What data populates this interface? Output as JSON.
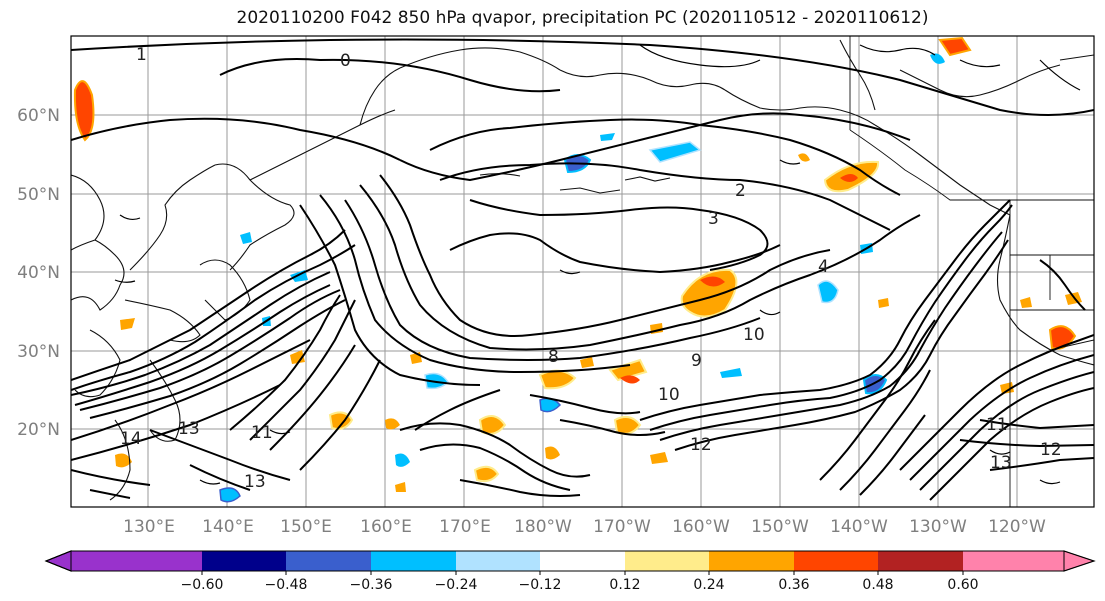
{
  "title": "2020110200 F042 850 hPa qvapor, precipitation PC (2020110512 - 2020110612)",
  "lat_labels": [
    "60°N",
    "50°N",
    "40°N",
    "30°N",
    "20°N"
  ],
  "lon_labels": [
    "130°E",
    "140°E",
    "150°E",
    "160°E",
    "170°E",
    "180°W",
    "170°W",
    "160°W",
    "150°W",
    "140°W",
    "130°W",
    "120°W"
  ],
  "colorbar": {
    "ticks": [
      "−0.60",
      "−0.48",
      "−0.36",
      "−0.24",
      "−0.12",
      "0.12",
      "0.24",
      "0.36",
      "0.48",
      "0.60"
    ],
    "colors": [
      "#9932cc",
      "#00008b",
      "#3a5fcd",
      "#00bfff",
      "#b0e2ff",
      "#ffffff",
      "#ffec8b",
      "#ffa500",
      "#ff4500",
      "#b22222",
      "#ff82ab"
    ]
  },
  "contour_labels": [
    "0",
    "1",
    "2",
    "3",
    "4",
    "8",
    "9",
    "10",
    "11",
    "12",
    "13",
    "14"
  ]
}
